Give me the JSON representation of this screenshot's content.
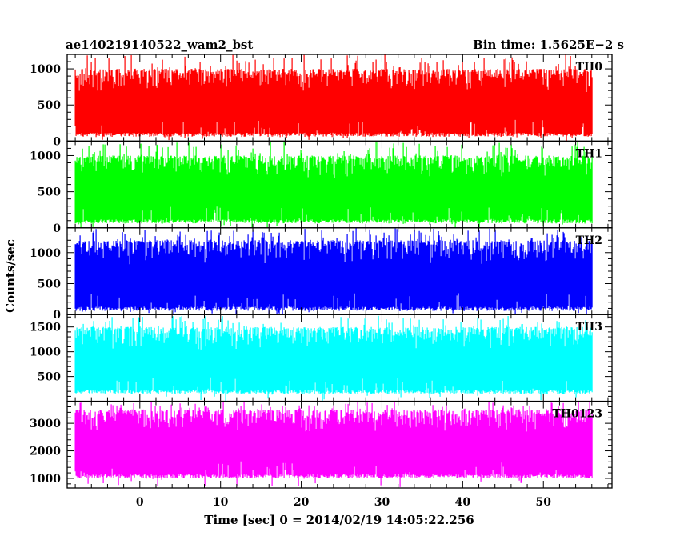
{
  "header": {
    "title": "ae140219140522_wam2_bst",
    "bin_time": "Bin time: 1.5625E−2 s"
  },
  "chart_data": {
    "type": "line",
    "xlabel": "Time [sec] 0 = 2014/02/19 14:05:22.256",
    "ylabel": "Counts/sec",
    "xlim": [
      -9,
      58.5
    ],
    "x_ticks": [
      0,
      10,
      20,
      30,
      40,
      50
    ],
    "x_tick_labels": [
      "0",
      "10",
      "20",
      "30",
      "40",
      "50"
    ],
    "x_data_range": [
      -8,
      56
    ],
    "bin_time_s": 0.015625,
    "grid": false,
    "panels": [
      {
        "name": "TH0",
        "color": "#ff0000",
        "ylim": [
          0,
          1200
        ],
        "y_ticks": [
          0,
          500,
          1000
        ],
        "y_tick_labels": [
          "0",
          "500",
          "1000"
        ],
        "baseline": 400,
        "typical_min": 60,
        "typical_max": 1000,
        "peak_max": 1200
      },
      {
        "name": "TH1",
        "color": "#00ff00",
        "ylim": [
          0,
          1200
        ],
        "y_ticks": [
          0,
          500,
          1000
        ],
        "y_tick_labels": [
          "0",
          "500",
          "1000"
        ],
        "baseline": 450,
        "typical_min": 60,
        "typical_max": 1000,
        "peak_max": 1200
      },
      {
        "name": "TH2",
        "color": "#0000ff",
        "ylim": [
          0,
          1400
        ],
        "y_ticks": [
          0,
          500,
          1000
        ],
        "y_tick_labels": [
          "0",
          "500",
          "1000"
        ],
        "baseline": 550,
        "typical_min": 60,
        "typical_max": 1200,
        "peak_max": 1400
      },
      {
        "name": "TH3",
        "color": "#00ffff",
        "ylim": [
          0,
          1750
        ],
        "y_ticks": [
          500,
          1000,
          1500
        ],
        "y_tick_labels": [
          "500",
          "1000",
          "1500"
        ],
        "baseline": 800,
        "typical_min": 150,
        "typical_max": 1500,
        "peak_max": 1750
      },
      {
        "name": "TH0123",
        "color": "#ff00ff",
        "ylim": [
          650,
          3800
        ],
        "y_ticks": [
          1000,
          2000,
          3000
        ],
        "y_tick_labels": [
          "1000",
          "2000",
          "3000"
        ],
        "baseline": 2100,
        "typical_min": 1000,
        "typical_max": 3500,
        "peak_max": 3800
      }
    ]
  }
}
